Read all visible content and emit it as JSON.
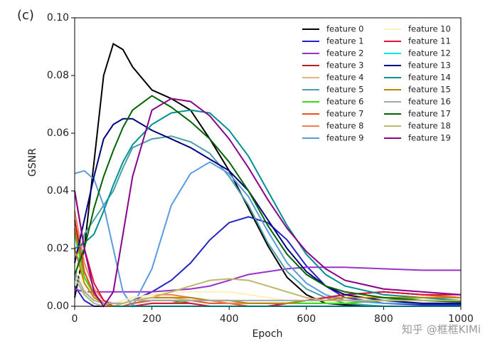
{
  "chart_data": {
    "type": "line",
    "annotation": "(c)",
    "xlabel": "Epoch",
    "ylabel": "GSNR",
    "watermark": "知乎 @框框KIMi",
    "x": [
      0,
      25,
      50,
      75,
      100,
      125,
      150,
      200,
      250,
      300,
      350,
      400,
      450,
      500,
      550,
      600,
      650,
      700,
      800,
      900,
      1000
    ],
    "xlim": [
      0,
      1000
    ],
    "xticks": [
      0,
      200,
      400,
      600,
      800,
      1000
    ],
    "ylim": [
      0,
      0.1
    ],
    "yticks": [
      {
        "value": 0,
        "label": "0.00"
      },
      {
        "value": 0.02,
        "label": "0.02"
      },
      {
        "value": 0.04,
        "label": "0.04"
      },
      {
        "value": 0.06,
        "label": "0.06"
      },
      {
        "value": 0.08,
        "label": "0.08"
      },
      {
        "value": 0.1,
        "label": "0.10"
      }
    ],
    "legend": "upper right",
    "series": [
      {
        "name": "feature 0",
        "color": "#000000",
        "values": [
          0.003,
          0.02,
          0.05,
          0.08,
          0.091,
          0.089,
          0.083,
          0.075,
          0.072,
          0.068,
          0.058,
          0.047,
          0.034,
          0.021,
          0.01,
          0.004,
          0.001,
          0.0005,
          0,
          0,
          0
        ]
      },
      {
        "name": "feature 1",
        "color": "#2323c4",
        "values": [
          0.007,
          0.002,
          0,
          0,
          0,
          0.001,
          0.002,
          0.005,
          0.009,
          0.015,
          0.023,
          0.029,
          0.031,
          0.029,
          0.023,
          0.014,
          0.007,
          0.003,
          0.001,
          0.0005,
          0.0005
        ]
      },
      {
        "name": "feature 2",
        "color": "#9a32cd",
        "values": [
          0.006,
          0.005,
          0.005,
          0.005,
          0.005,
          0.005,
          0.005,
          0.005,
          0.0055,
          0.006,
          0.007,
          0.009,
          0.011,
          0.012,
          0.013,
          0.0135,
          0.0135,
          0.0135,
          0.013,
          0.0125,
          0.0125
        ]
      },
      {
        "name": "feature 3",
        "color": "#b22222",
        "values": [
          0.03,
          0.012,
          0.004,
          0.001,
          0,
          0,
          0.001,
          0.002,
          0.002,
          0.001,
          0,
          0,
          0,
          0,
          0.001,
          0.002,
          0.003,
          0.004,
          0.005,
          0.004,
          0.003
        ]
      },
      {
        "name": "feature 4",
        "color": "#e9b07a",
        "values": [
          0.02,
          0.01,
          0.004,
          0.001,
          0,
          0.001,
          0.002,
          0.003,
          0.003,
          0.002,
          0.002,
          0.001,
          0.001,
          0.001,
          0.001,
          0.001,
          0.001,
          0.001,
          0.002,
          0.002,
          0.002
        ]
      },
      {
        "name": "feature 5",
        "color": "#4a9fa8",
        "values": [
          0.009,
          0.025,
          0.03,
          0.035,
          0.04,
          0.048,
          0.055,
          0.058,
          0.059,
          0.057,
          0.053,
          0.045,
          0.035,
          0.022,
          0.012,
          0.006,
          0.003,
          0.001,
          0,
          0,
          0
        ]
      },
      {
        "name": "feature 6",
        "color": "#33dd11",
        "values": [
          0.025,
          0.01,
          0.004,
          0.001,
          0,
          0,
          0,
          0.001,
          0.001,
          0.002,
          0.002,
          0.002,
          0.001,
          0.001,
          0.001,
          0.001,
          0.001,
          0.001,
          0.002,
          0.003,
          0.003
        ]
      },
      {
        "name": "feature 7",
        "color": "#e8551b",
        "values": [
          0.027,
          0.012,
          0.004,
          0.001,
          0,
          0,
          0.001,
          0.002,
          0.002,
          0.002,
          0.001,
          0.001,
          0,
          0,
          0.001,
          0.002,
          0.003,
          0.004,
          0.005,
          0.004,
          0.003
        ]
      },
      {
        "name": "feature 8",
        "color": "#f08050",
        "values": [
          0.033,
          0.015,
          0.006,
          0.002,
          0.001,
          0.002,
          0.003,
          0.004,
          0.004,
          0.003,
          0.002,
          0.001,
          0.001,
          0.001,
          0.001,
          0.002,
          0.003,
          0.003,
          0.003,
          0.003,
          0.003
        ]
      },
      {
        "name": "feature 9",
        "color": "#5b9be0",
        "values": [
          0.046,
          0.047,
          0.044,
          0.035,
          0.02,
          0.005,
          0,
          0.013,
          0.035,
          0.046,
          0.05,
          0.046,
          0.038,
          0.026,
          0.015,
          0.008,
          0.004,
          0.002,
          0.001,
          0.001,
          0.001
        ]
      },
      {
        "name": "feature 10",
        "color": "#fff0b8",
        "values": [
          0.015,
          0.006,
          0.002,
          0.001,
          0.001,
          0.002,
          0.003,
          0.004,
          0.005,
          0.005,
          0.005,
          0.005,
          0.004,
          0.003,
          0.002,
          0.002,
          0.002,
          0.003,
          0.003,
          0.003,
          0.003
        ]
      },
      {
        "name": "feature 11",
        "color": "#dc143c",
        "values": [
          0.04,
          0.02,
          0.008,
          0.002,
          0,
          0,
          0,
          0.001,
          0.001,
          0.001,
          0,
          0,
          0,
          0,
          0.001,
          0.002,
          0.003,
          0.004,
          0.005,
          0.004,
          0.004
        ]
      },
      {
        "name": "feature 12",
        "color": "#00e5ee",
        "values": [
          0.01,
          0.004,
          0.001,
          0,
          0,
          0,
          0,
          0,
          0,
          0,
          0,
          0,
          0,
          0,
          0,
          0,
          0,
          0,
          0,
          0,
          0
        ]
      },
      {
        "name": "feature 13",
        "color": "#000080",
        "values": [
          0.015,
          0.03,
          0.045,
          0.058,
          0.063,
          0.065,
          0.065,
          0.061,
          0.058,
          0.055,
          0.051,
          0.047,
          0.04,
          0.03,
          0.02,
          0.012,
          0.007,
          0.004,
          0.002,
          0.001,
          0.001
        ]
      },
      {
        "name": "feature 14",
        "color": "#009090",
        "values": [
          0.02,
          0.022,
          0.025,
          0.033,
          0.042,
          0.05,
          0.056,
          0.063,
          0.067,
          0.068,
          0.067,
          0.061,
          0.052,
          0.04,
          0.028,
          0.018,
          0.011,
          0.007,
          0.004,
          0.003,
          0.002
        ]
      },
      {
        "name": "feature 15",
        "color": "#b8860b",
        "values": [
          0.02,
          0.008,
          0.003,
          0.001,
          0,
          0.001,
          0.002,
          0.003,
          0.003,
          0.003,
          0.002,
          0.002,
          0.001,
          0.001,
          0.001,
          0.002,
          0.002,
          0.003,
          0.003,
          0.003,
          0.003
        ]
      },
      {
        "name": "feature 16",
        "color": "#a0a8b0",
        "values": [
          0.012,
          0.005,
          0.002,
          0.001,
          0.001,
          0.001,
          0.002,
          0.002,
          0.002,
          0.002,
          0.002,
          0.002,
          0.002,
          0.002,
          0.002,
          0.002,
          0.002,
          0.002,
          0.002,
          0.002,
          0.002
        ]
      },
      {
        "name": "feature 17",
        "color": "#006400",
        "values": [
          0.011,
          0.02,
          0.034,
          0.045,
          0.054,
          0.062,
          0.068,
          0.073,
          0.069,
          0.064,
          0.058,
          0.05,
          0.04,
          0.028,
          0.018,
          0.011,
          0.007,
          0.005,
          0.003,
          0.002,
          0.0015
        ]
      },
      {
        "name": "feature 18",
        "color": "#bdb76b",
        "values": [
          0.01,
          0.004,
          0.001,
          0,
          0,
          0.001,
          0.002,
          0.003,
          0.005,
          0.007,
          0.009,
          0.0095,
          0.009,
          0.007,
          0.005,
          0.003,
          0.002,
          0.002,
          0.002,
          0.002,
          0.002
        ]
      },
      {
        "name": "feature 19",
        "color": "#8b008b",
        "values": [
          0.04,
          0.02,
          0.005,
          0,
          0.005,
          0.025,
          0.045,
          0.068,
          0.072,
          0.071,
          0.066,
          0.058,
          0.048,
          0.037,
          0.027,
          0.019,
          0.013,
          0.009,
          0.006,
          0.005,
          0.004
        ]
      }
    ]
  }
}
